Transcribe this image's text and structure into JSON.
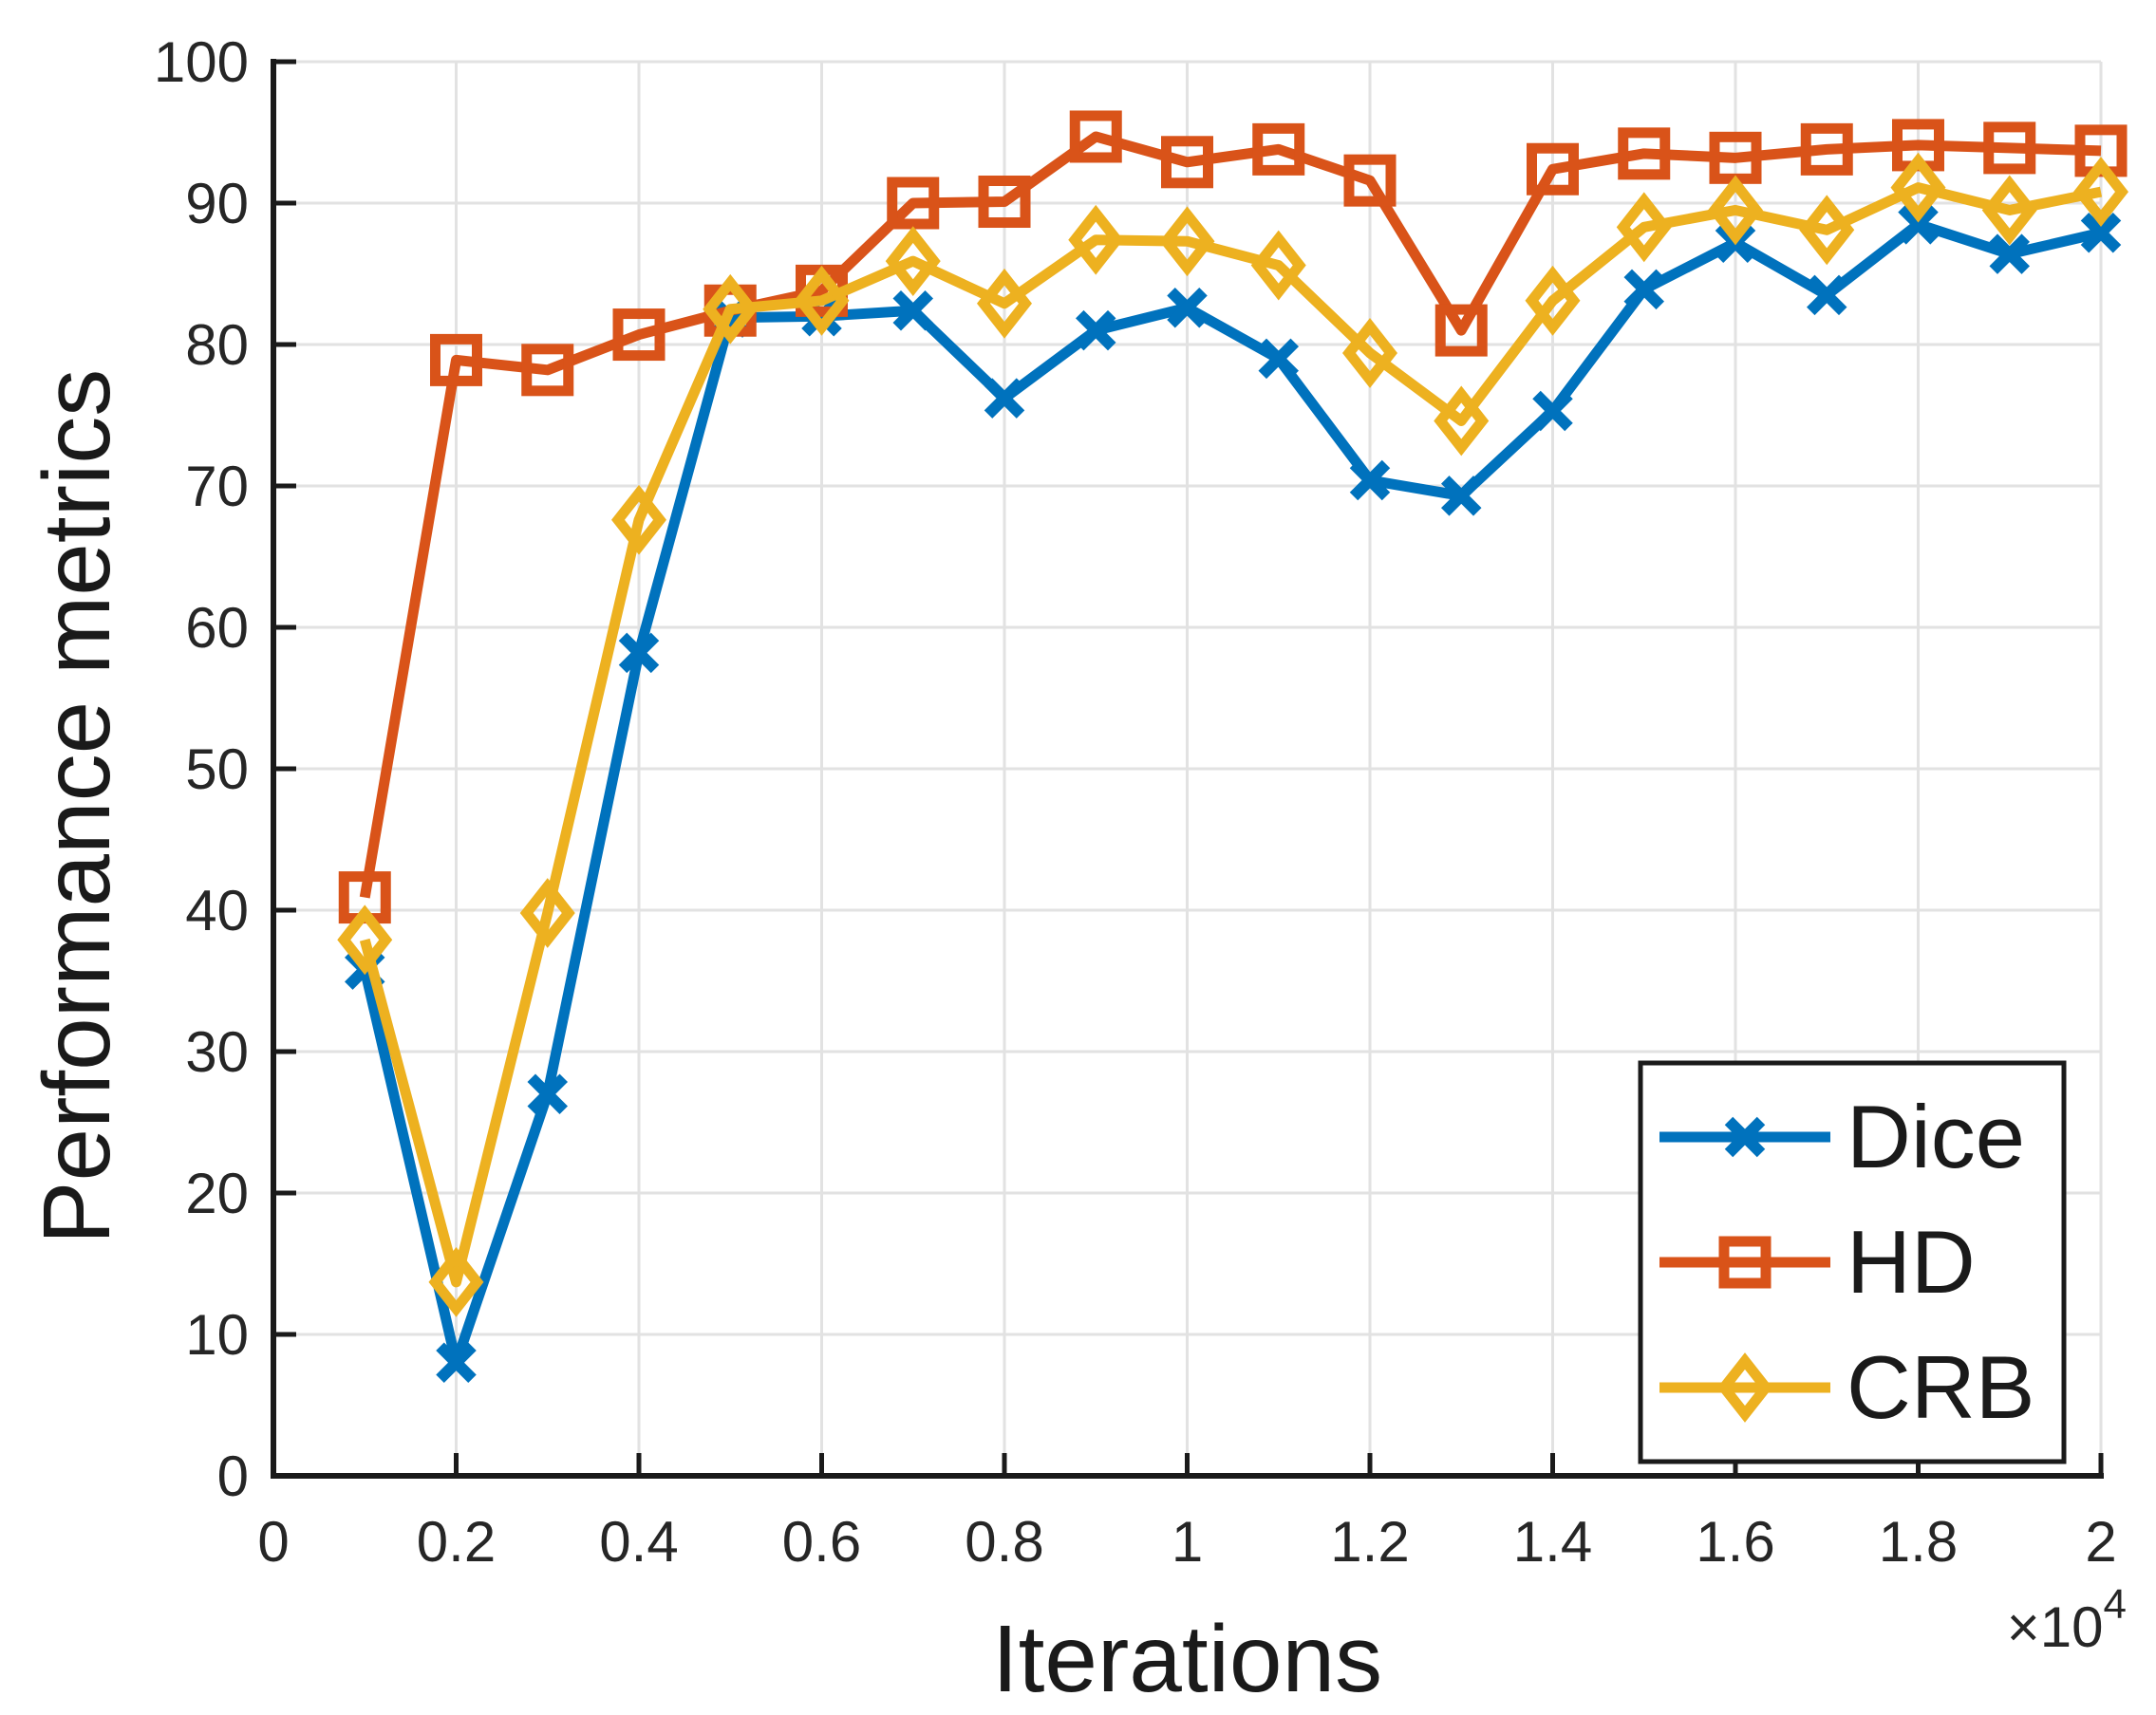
{
  "figure": {
    "background": "#ffffff",
    "colors": {
      "grid": "#E2E2E2",
      "axis": "#1A1A1A",
      "tick_text": "#262626",
      "label_text": "#1A1A1A",
      "legend_border": "#1A1A1A",
      "legend_bg": "#ffffff"
    }
  },
  "chart_data": {
    "type": "line",
    "title": "",
    "xlabel": "Iterations",
    "ylabel": "Performance metrics",
    "x_axis_multiplier": "×10",
    "x_axis_multiplier_exponent": "4",
    "xlim": [
      0,
      2
    ],
    "ylim": [
      0,
      100
    ],
    "grid": true,
    "x_ticks": [
      0,
      0.2,
      0.4,
      0.6,
      0.8,
      1,
      1.2,
      1.4,
      1.6,
      1.8,
      2
    ],
    "x_tick_labels": [
      "0",
      "0.2",
      "0.4",
      "0.6",
      "0.8",
      "1",
      "1.2",
      "1.4",
      "1.6",
      "1.8",
      "2"
    ],
    "y_ticks": [
      0,
      10,
      20,
      30,
      40,
      50,
      60,
      70,
      80,
      90,
      100
    ],
    "y_tick_labels": [
      "0",
      "10",
      "20",
      "30",
      "40",
      "50",
      "60",
      "70",
      "80",
      "90",
      "100"
    ],
    "x": [
      0.1,
      0.2,
      0.3,
      0.4,
      0.5,
      0.6,
      0.7,
      0.8,
      0.9,
      1.0,
      1.1,
      1.2,
      1.3,
      1.4,
      1.5,
      1.6,
      1.7,
      1.8,
      1.9,
      2.0
    ],
    "series": [
      {
        "name": "Dice",
        "color": "#0072BD",
        "marker": "x",
        "values": [
          35.8,
          8.0,
          27.0,
          58.2,
          81.9,
          82.0,
          82.4,
          76.2,
          81.0,
          82.6,
          79.0,
          70.4,
          69.3,
          75.3,
          83.9,
          87.2,
          83.5,
          88.5,
          86.4,
          87.9
        ]
      },
      {
        "name": "HD",
        "color": "#D95319",
        "marker": "square",
        "values": [
          40.9,
          78.9,
          78.2,
          80.7,
          82.4,
          83.8,
          90.0,
          90.1,
          94.7,
          92.9,
          93.8,
          91.6,
          81.0,
          92.4,
          93.5,
          93.2,
          93.8,
          94.1,
          93.9,
          93.7
        ]
      },
      {
        "name": "CRB",
        "color": "#EDB120",
        "marker": "diamond",
        "values": [
          37.9,
          13.7,
          39.8,
          67.6,
          82.5,
          83.1,
          85.9,
          82.9,
          87.4,
          87.3,
          85.6,
          79.4,
          74.6,
          83.1,
          88.3,
          89.5,
          88.1,
          91.1,
          89.5,
          90.8
        ]
      }
    ],
    "legend": {
      "position": "lower right",
      "entries": [
        "Dice",
        "HD",
        "CRB"
      ]
    }
  }
}
